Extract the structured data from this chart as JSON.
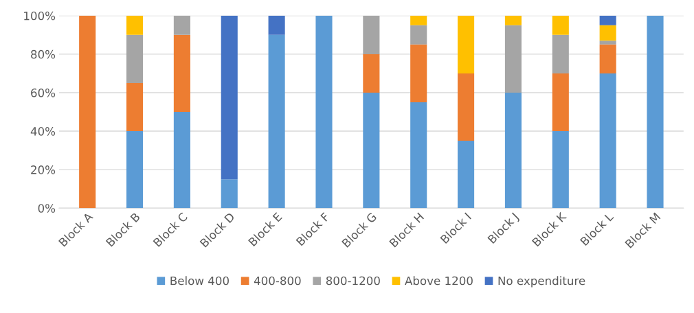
{
  "chart_data": {
    "type": "bar",
    "stacked": true,
    "categories": [
      "Block A",
      "Block B",
      "Block C",
      "Block D",
      "Block E",
      "Block F",
      "Block G",
      "Block H",
      "Block I",
      "Block J",
      "Block K",
      "Block L",
      "Block M"
    ],
    "series": [
      {
        "name": "Below 400",
        "color": "#5b9bd5",
        "values": [
          0,
          40,
          50,
          15,
          90,
          100,
          60,
          55,
          35,
          60,
          40,
          70,
          100
        ]
      },
      {
        "name": "400-800",
        "color": "#ed7d31",
        "values": [
          100,
          25,
          40,
          0,
          0,
          0,
          20,
          30,
          35,
          0,
          30,
          15,
          0
        ]
      },
      {
        "name": "800-1200",
        "color": "#a5a5a5",
        "values": [
          0,
          25,
          10,
          0,
          0,
          0,
          20,
          10,
          0,
          35,
          20,
          2,
          0
        ]
      },
      {
        "name": "Above 1200",
        "color": "#ffc000",
        "values": [
          0,
          10,
          0,
          0,
          0,
          0,
          0,
          5,
          30,
          5,
          10,
          8,
          0
        ]
      },
      {
        "name": "No expenditure",
        "color": "#4472c4",
        "values": [
          0,
          0,
          0,
          85,
          10,
          0,
          0,
          0,
          0,
          0,
          0,
          5,
          0
        ]
      }
    ],
    "ylim": [
      0,
      100
    ],
    "yticks": [
      {
        "value": 0,
        "label": "0%"
      },
      {
        "value": 20,
        "label": "20%"
      },
      {
        "value": 40,
        "label": "40%"
      },
      {
        "value": 60,
        "label": "60%"
      },
      {
        "value": 80,
        "label": "80%"
      },
      {
        "value": 100,
        "label": "100%"
      }
    ],
    "grid": "y",
    "legend": "bottom"
  }
}
